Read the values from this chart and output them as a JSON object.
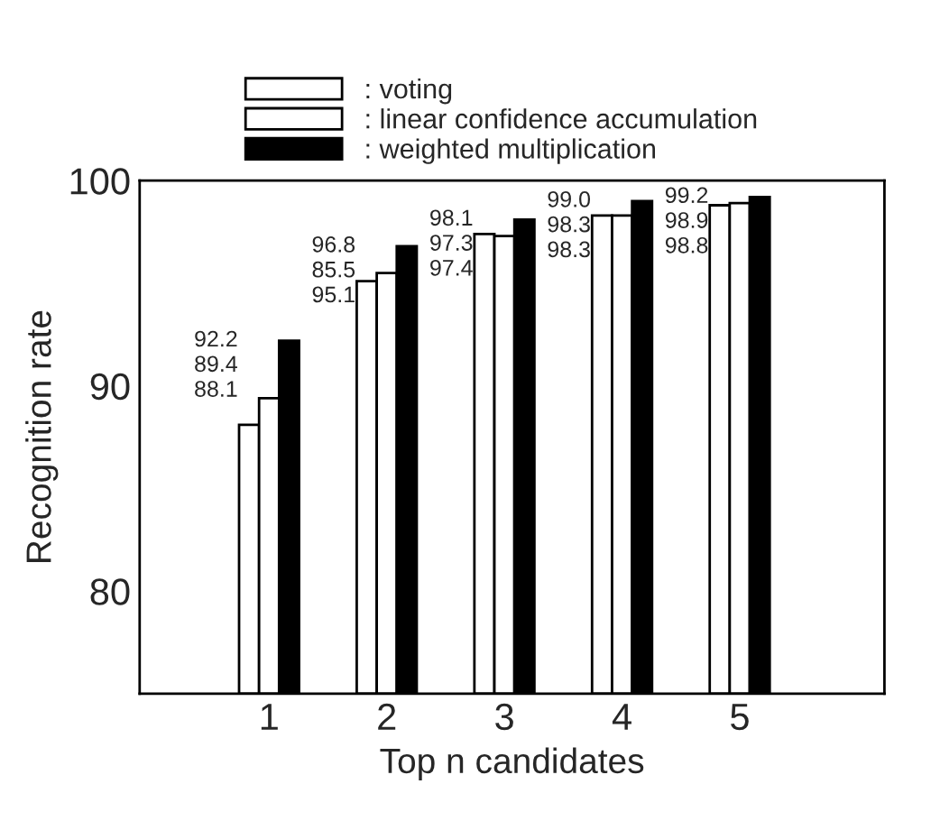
{
  "chart_data": {
    "type": "bar",
    "xlabel": "Top n candidates",
    "ylabel": "Recognition rate",
    "categories": [
      "1",
      "2",
      "3",
      "4",
      "5"
    ],
    "series": [
      {
        "name": ": voting",
        "color": "#ffffff",
        "values": [
          88.1,
          95.1,
          97.4,
          98.3,
          98.8
        ]
      },
      {
        "name": ": linear confidence accumulation",
        "color": "#ffffff",
        "values": [
          89.4,
          95.5,
          97.3,
          98.3,
          98.9
        ]
      },
      {
        "name": ": weighted multiplication",
        "color": "#000000",
        "values": [
          92.2,
          96.8,
          98.1,
          99.0,
          99.2
        ]
      }
    ],
    "annotations": [
      "92.2",
      "89.4",
      "88.1",
      "96.8",
      "85.5",
      "95.1",
      "98.1",
      "97.3",
      "97.4",
      "99.0",
      "98.3",
      "98.3",
      "99.2",
      "98.9",
      "98.8"
    ],
    "ylim": [
      75,
      100
    ],
    "yticks": [
      80,
      90,
      100
    ],
    "grid": false,
    "legend": "top"
  }
}
